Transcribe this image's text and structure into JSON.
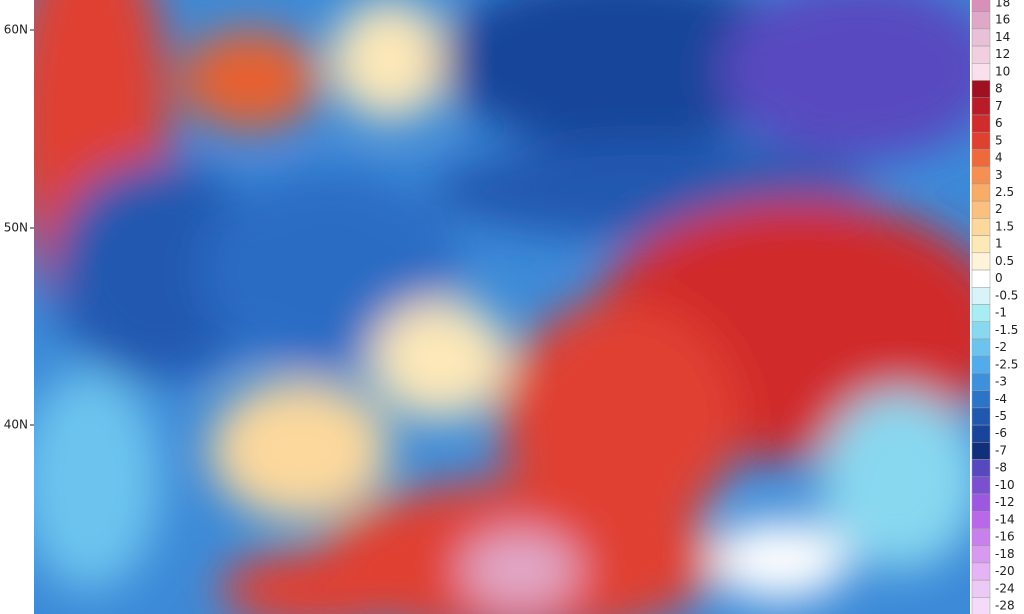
{
  "map": {
    "lat_labels": [
      "60N",
      "50N",
      "40N"
    ],
    "legend": {
      "labels": [
        "18",
        "16",
        "14",
        "12",
        "10",
        "8",
        "7",
        "6",
        "5",
        "4",
        "3",
        "2.5",
        "2",
        "1.5",
        "1",
        "0.5",
        "0",
        "-0.5",
        "-1",
        "-1.5",
        "-2",
        "-2.5",
        "-3",
        "-4",
        "-5",
        "-6",
        "-7",
        "-8",
        "-10",
        "-12",
        "-14",
        "-16",
        "-18",
        "-20",
        "-24",
        "-28"
      ],
      "colors": [
        "#d890b8",
        "#e0a8c8",
        "#e8c0d8",
        "#f0d0e0",
        "#f8e0ec",
        "#a01020",
        "#b81c28",
        "#d02c2c",
        "#e04030",
        "#ee6a3c",
        "#f59050",
        "#f8ac66",
        "#fac080",
        "#fcd89c",
        "#fde8b8",
        "#fff4da",
        "#ffffff",
        "#d8f4f8",
        "#a8ecf4",
        "#88d8f0",
        "#6cc4ee",
        "#50acec",
        "#3c90dc",
        "#2c74c8",
        "#2058b0",
        "#18449a",
        "#10307c",
        "#5848c0",
        "#7a50d0",
        "#9c58e0",
        "#b868e8",
        "#c880ec",
        "#d89af0",
        "#e4b4f4",
        "#eccaf6",
        "#f4dcf8"
      ]
    }
  }
}
